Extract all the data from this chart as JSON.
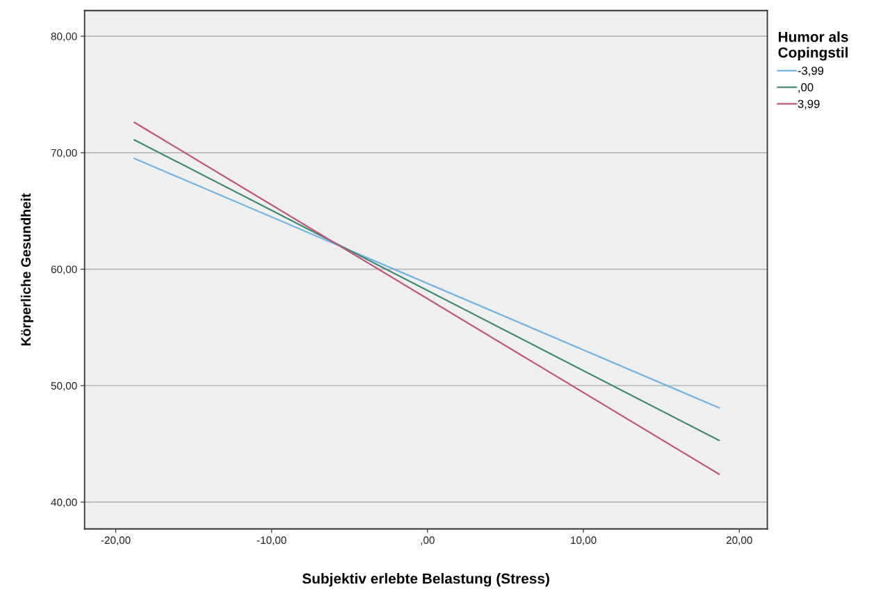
{
  "chart_data": {
    "type": "line",
    "xlabel": "Subjektiv erlebte Belastung (Stress)",
    "ylabel": "Körperliche Gesundheit",
    "legend_title": "Humor als\nCopingstil",
    "x": [
      -18.8,
      18.7
    ],
    "series": [
      {
        "name": "-3,99",
        "color": "#6cb4e8",
        "values": [
          69.5,
          48.1
        ]
      },
      {
        "name": ",00",
        "color": "#3e8a76",
        "values": [
          71.1,
          45.3
        ]
      },
      {
        "name": "3,99",
        "color": "#c2507a",
        "values": [
          72.6,
          42.4
        ]
      }
    ],
    "xlim": [
      -22,
      21.8
    ],
    "ylim": [
      37.7,
      82.2
    ],
    "xticks": [
      {
        "value": -20,
        "label": "-20,00"
      },
      {
        "value": -10,
        "label": "-10,00"
      },
      {
        "value": 0,
        "label": ",00"
      },
      {
        "value": 10,
        "label": "10,00"
      },
      {
        "value": 20,
        "label": "20,00"
      }
    ],
    "yticks": [
      {
        "value": 40,
        "label": "40,00"
      },
      {
        "value": 50,
        "label": "50,00"
      },
      {
        "value": 60,
        "label": "60,00"
      },
      {
        "value": 70,
        "label": "70,00"
      },
      {
        "value": 80,
        "label": "80,00"
      }
    ],
    "grid": "y",
    "legend": "top right",
    "marker": "none",
    "line_style": "solid"
  }
}
